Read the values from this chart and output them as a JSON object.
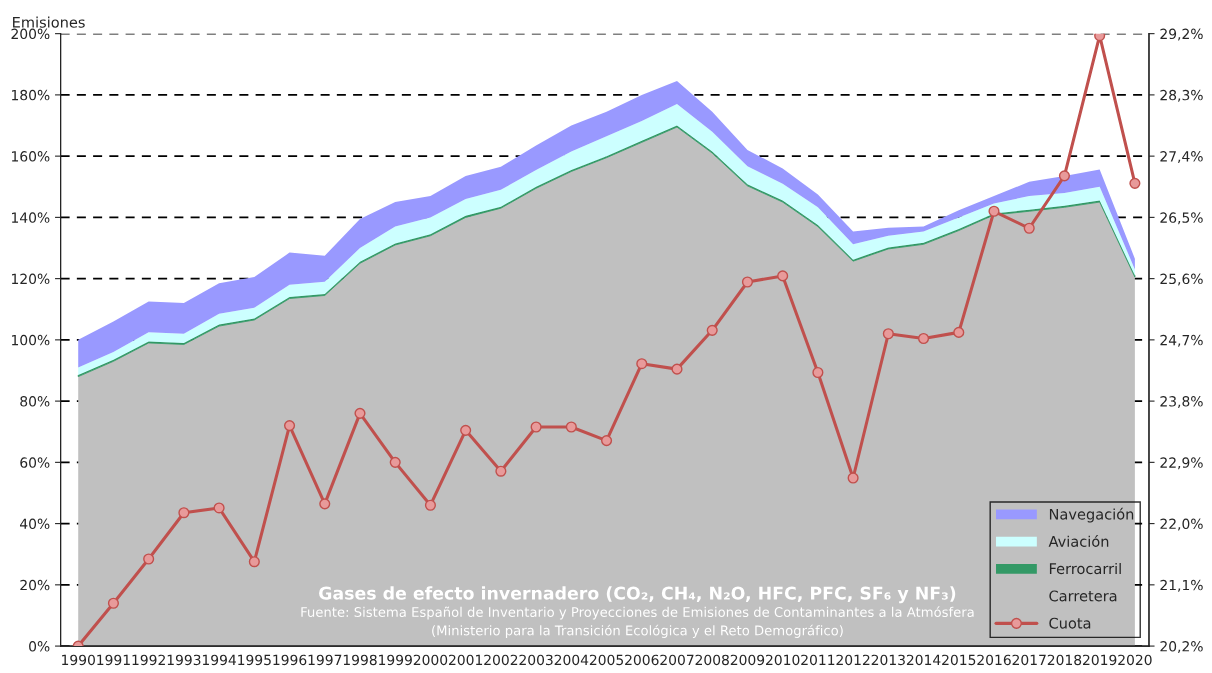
{
  "chart_data": {
    "type": "area",
    "title": "Gases de efecto invernadero (CO₂, CH₄, N₂O, HFC, PFC, SF₆ y NF₃)",
    "ylabel": "Emisiones",
    "annotations": [
      "Fuente: Sistema Español de Inventario y Proyecciones de Emisiones de Contaminantes a la Atmósfera",
      "(Ministerio para la Transición Ecológica y el Reto Demográfico)"
    ],
    "categories": [
      "1990",
      "1991",
      "1992",
      "1993",
      "1994",
      "1995",
      "1996",
      "1997",
      "1998",
      "1999",
      "2000",
      "2001",
      "2002",
      "2003",
      "2004",
      "2005",
      "2006",
      "2007",
      "2008",
      "2009",
      "2010",
      "2011",
      "2012",
      "2013",
      "2014",
      "2015",
      "2016",
      "2017",
      "2018",
      "2019",
      "2020"
    ],
    "stacked": true,
    "series": [
      {
        "name": "Carretera",
        "color": "#c0c0c0",
        "values": [
          88,
          93,
          99,
          98.5,
          104.5,
          106.5,
          113.5,
          114.5,
          125,
          131,
          134,
          140,
          143,
          149.5,
          155,
          159.5,
          164.5,
          169.5,
          161,
          150.3,
          145,
          137,
          125.7,
          129.7,
          131.2,
          135.7,
          140.8,
          142,
          143.3,
          145,
          120.5
        ]
      },
      {
        "name": "Ferrocarril",
        "color": "#339966",
        "values": [
          0.5,
          0.5,
          0.5,
          0.5,
          0.5,
          0.5,
          0.5,
          0.5,
          0.5,
          0.5,
          0.5,
          0.5,
          0.5,
          0.5,
          0.5,
          0.5,
          0.5,
          0.5,
          0.5,
          0.5,
          0.5,
          0.5,
          0.5,
          0.5,
          0.5,
          0.5,
          0.5,
          0.5,
          0.5,
          0.5,
          0.5
        ]
      },
      {
        "name": "Aviación",
        "color": "#ccffff",
        "values": [
          2.5,
          2.5,
          3,
          3,
          3.5,
          3.5,
          4,
          4,
          4.5,
          5.5,
          5.5,
          5.5,
          5.5,
          5.5,
          6,
          6.5,
          6.5,
          7,
          6.5,
          5.9,
          5.5,
          5.8,
          5,
          3.8,
          3.7,
          3.8,
          3.2,
          4.5,
          4.2,
          4.5,
          2
        ]
      },
      {
        "name": "Navegación",
        "color": "#9999ff",
        "values": [
          9,
          10,
          10,
          10,
          10,
          10,
          10.5,
          8.5,
          9.5,
          8,
          7,
          7.5,
          7.5,
          8,
          8.5,
          8,
          8.5,
          7.5,
          6.5,
          5.3,
          5,
          4.2,
          4.2,
          2.6,
          1.6,
          2.3,
          2.5,
          4.6,
          5.5,
          5.6,
          3.5
        ]
      },
      {
        "name": "Cuota",
        "type": "line",
        "axis": "y2",
        "color": "#c0504d",
        "marker": "circle",
        "values": [
          20.2,
          20.83,
          21.48,
          22.16,
          22.23,
          21.44,
          23.44,
          22.29,
          23.62,
          22.9,
          22.27,
          23.37,
          22.77,
          23.42,
          23.42,
          23.22,
          24.35,
          24.27,
          24.84,
          25.55,
          25.64,
          24.22,
          22.67,
          24.79,
          24.72,
          24.81,
          26.59,
          26.34,
          27.11,
          29.17,
          27.0
        ]
      }
    ],
    "ylim": [
      0,
      200
    ],
    "yticks": [
      {
        "value": 0,
        "label": "0%"
      },
      {
        "value": 20,
        "label": "20%"
      },
      {
        "value": 40,
        "label": "40%"
      },
      {
        "value": 60,
        "label": "60%"
      },
      {
        "value": 80,
        "label": "80%"
      },
      {
        "value": 100,
        "label": "100%"
      },
      {
        "value": 120,
        "label": "120%"
      },
      {
        "value": 140,
        "label": "140%"
      },
      {
        "value": 160,
        "label": "160%"
      },
      {
        "value": 180,
        "label": "180%"
      },
      {
        "value": 200,
        "label": "200%"
      }
    ],
    "y2lim": [
      20.2,
      29.2
    ],
    "y2ticks": [
      {
        "value": 20.2,
        "label": "20,2%"
      },
      {
        "value": 21.1,
        "label": "21,1%"
      },
      {
        "value": 22.0,
        "label": "22,0%"
      },
      {
        "value": 22.9,
        "label": "22,9%"
      },
      {
        "value": 23.8,
        "label": "23,8%"
      },
      {
        "value": 24.7,
        "label": "24,7%"
      },
      {
        "value": 25.6,
        "label": "25,6%"
      },
      {
        "value": 26.5,
        "label": "26,5%"
      },
      {
        "value": 27.4,
        "label": "27,4%"
      },
      {
        "value": 28.3,
        "label": "28,3%"
      },
      {
        "value": 29.2,
        "label": "29,2%"
      }
    ],
    "grid": "y",
    "legend": "bottom right"
  }
}
